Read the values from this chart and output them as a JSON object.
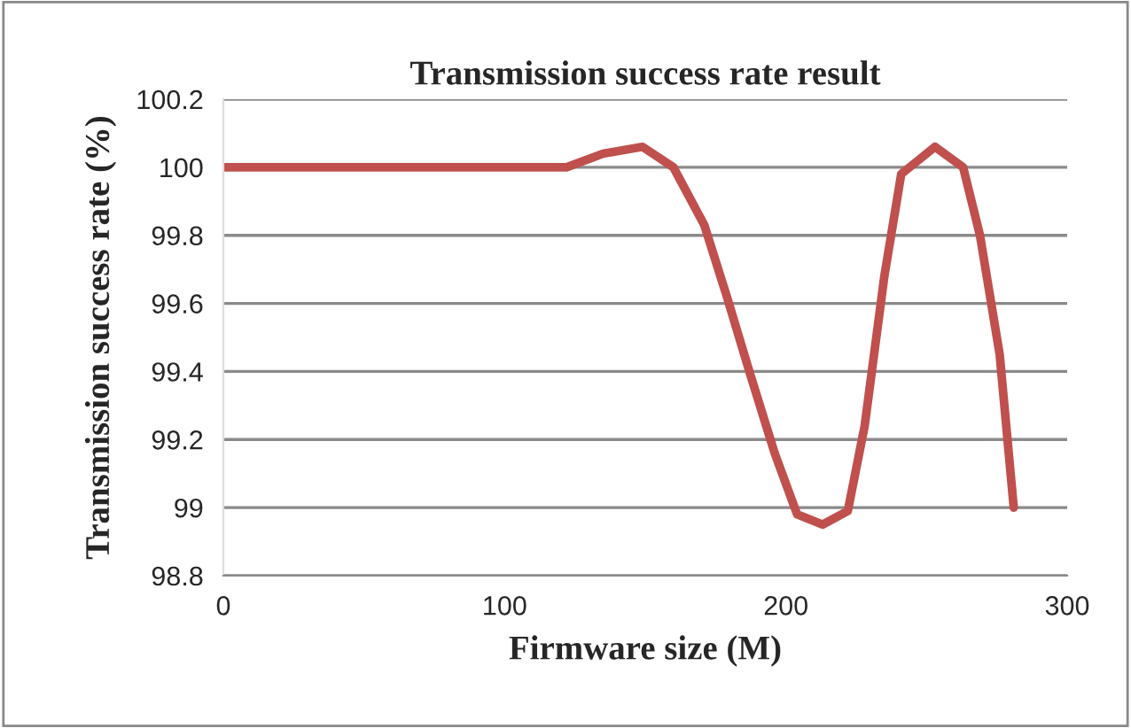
{
  "chart_data": {
    "type": "line",
    "title": "Transmission success rate result",
    "xlabel": "Firmware size (M)",
    "ylabel": "Transmission success rate (%)",
    "x": [
      0,
      122,
      135,
      149,
      160,
      171,
      179,
      187,
      196,
      204,
      213,
      222,
      228,
      235,
      241,
      253,
      263,
      269,
      276,
      281
    ],
    "series": [
      {
        "color": "#c0504d",
        "values": [
          100,
          100,
          100.04,
          100.06,
          100.0,
          99.83,
          99.62,
          99.4,
          99.16,
          98.98,
          98.95,
          98.99,
          99.24,
          99.68,
          99.98,
          100.06,
          100.0,
          99.8,
          99.45,
          99.0
        ]
      }
    ],
    "xlim": [
      0,
      300
    ],
    "xticks": [
      0,
      100,
      200,
      300
    ],
    "ylim": [
      98.8,
      100.2
    ],
    "yticks": [
      98.8,
      99,
      99.2,
      99.4,
      99.6,
      99.8,
      100,
      100.2
    ],
    "grid": "y",
    "marker": "none",
    "line_style": "solid"
  }
}
